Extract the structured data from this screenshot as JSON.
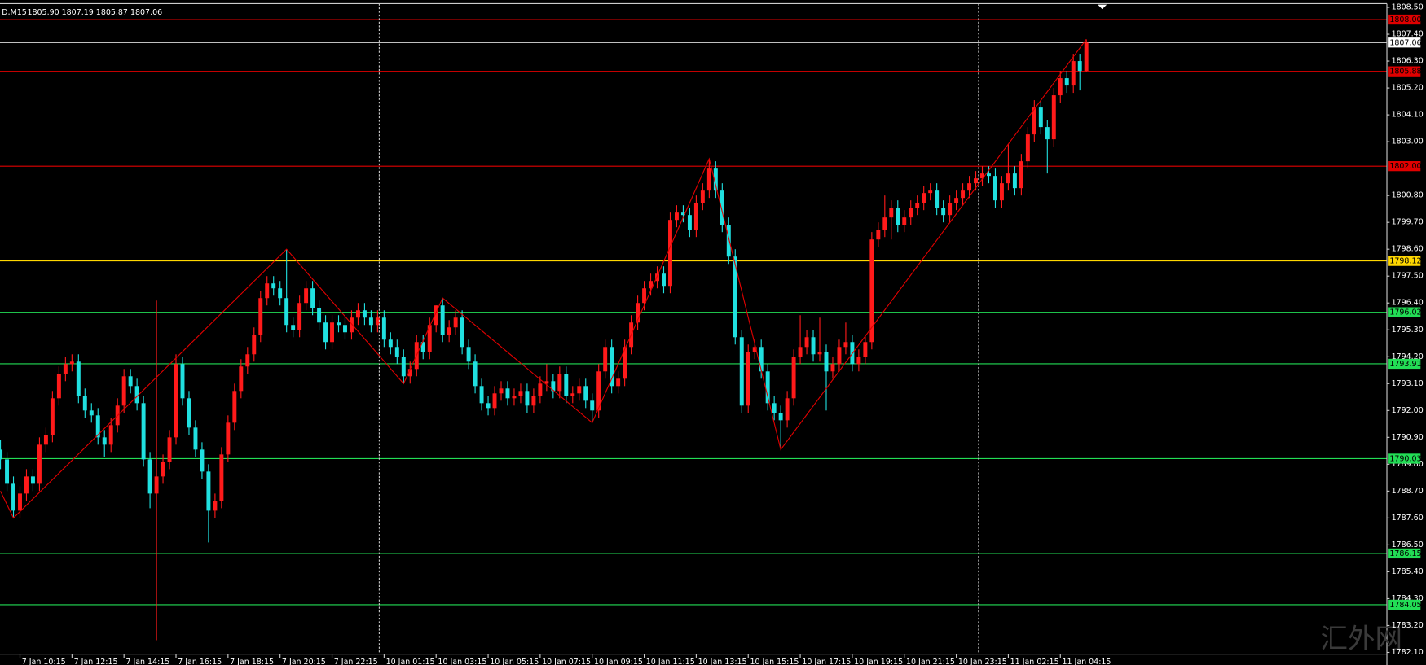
{
  "chart_data": {
    "type": "candlestick",
    "title": "D,M15",
    "subtitle": "1805.90 1807.19 1805.87 1807.06",
    "watermark": "汇外网",
    "up_color": "#ff1a1a",
    "down_color": "#20e0e0",
    "grid": false,
    "xlim": [
      -0.07,
      213.22
    ],
    "ylim": [
      1782.03,
      1808.8
    ],
    "yticks": [
      {
        "value": 1808.5,
        "label": "1808.50"
      },
      {
        "value": 1807.4,
        "label": "1807.40"
      },
      {
        "value": 1806.3,
        "label": "1806.30"
      },
      {
        "value": 1805.2,
        "label": "1805.20"
      },
      {
        "value": 1804.1,
        "label": "1804.10"
      },
      {
        "value": 1803.0,
        "label": "1803.00"
      },
      {
        "value": 1800.8,
        "label": "1800.80"
      },
      {
        "value": 1799.7,
        "label": "1799.70"
      },
      {
        "value": 1798.6,
        "label": "1798.60"
      },
      {
        "value": 1797.5,
        "label": "1797.50"
      },
      {
        "value": 1796.4,
        "label": "1796.40"
      },
      {
        "value": 1795.3,
        "label": "1795.30"
      },
      {
        "value": 1794.2,
        "label": "1794.20"
      },
      {
        "value": 1793.1,
        "label": "1793.10"
      },
      {
        "value": 1792.0,
        "label": "1792.00"
      },
      {
        "value": 1790.9,
        "label": "1790.90"
      },
      {
        "value": 1789.8,
        "label": "1789.80"
      },
      {
        "value": 1788.7,
        "label": "1788.70"
      },
      {
        "value": 1787.6,
        "label": "1787.60"
      },
      {
        "value": 1786.5,
        "label": "1786.50"
      },
      {
        "value": 1785.4,
        "label": "1785.40"
      },
      {
        "value": 1784.3,
        "label": "1784.30"
      },
      {
        "value": 1783.2,
        "label": "1783.20"
      },
      {
        "value": 1782.1,
        "label": "1782.10"
      }
    ],
    "xticks": [
      {
        "value": 3,
        "label": "7 Jan 10:15"
      },
      {
        "value": 11,
        "label": "7 Jan 12:15"
      },
      {
        "value": 19,
        "label": "7 Jan 14:15"
      },
      {
        "value": 27,
        "label": "7 Jan 16:15"
      },
      {
        "value": 35,
        "label": "7 Jan 18:15"
      },
      {
        "value": 43,
        "label": "7 Jan 20:15"
      },
      {
        "value": 51,
        "label": "7 Jan 22:15"
      },
      {
        "value": 59,
        "label": "10 Jan 01:15"
      },
      {
        "value": 67,
        "label": "10 Jan 03:15"
      },
      {
        "value": 75,
        "label": "10 Jan 05:15"
      },
      {
        "value": 83,
        "label": "10 Jan 07:15"
      },
      {
        "value": 91,
        "label": "10 Jan 09:15"
      },
      {
        "value": 99,
        "label": "10 Jan 11:15"
      },
      {
        "value": 107,
        "label": "10 Jan 13:15"
      },
      {
        "value": 115,
        "label": "10 Jan 15:15"
      },
      {
        "value": 123,
        "label": "10 Jan 17:15"
      },
      {
        "value": 131,
        "label": "10 Jan 19:15"
      },
      {
        "value": 139,
        "label": "10 Jan 21:15"
      },
      {
        "value": 147,
        "label": "10 Jan 23:15"
      },
      {
        "value": 155,
        "label": "11 Jan 02:15"
      },
      {
        "value": 163,
        "label": "11 Jan 04:15"
      }
    ],
    "levels": [
      {
        "value": 1808.0,
        "label": "1808.00",
        "color": "#e00000"
      },
      {
        "value": 1807.06,
        "label": "1807.06",
        "color": "#ffffff"
      },
      {
        "value": 1805.88,
        "label": "1805.88",
        "color": "#e00000"
      },
      {
        "value": 1802.0,
        "label": "1802.00",
        "color": "#e00000"
      },
      {
        "value": 1798.12,
        "label": "1798.12",
        "color": "#ffd700"
      },
      {
        "value": 1796.02,
        "label": "1796.02",
        "color": "#22dd55"
      },
      {
        "value": 1793.91,
        "label": "1793.91",
        "color": "#22dd55"
      },
      {
        "value": 1790.03,
        "label": "1790.03",
        "color": "#22dd55"
      },
      {
        "value": 1786.15,
        "label": "1786.15",
        "color": "#22dd55"
      },
      {
        "value": 1784.05,
        "label": "1784.05",
        "color": "#22dd55"
      }
    ],
    "zigzag": {
      "color": "#e00000",
      "x": [
        0,
        2,
        44,
        62,
        68,
        91,
        109,
        120,
        167
      ],
      "y": [
        1788.7,
        1787.6,
        1798.6,
        1793.1,
        1796.6,
        1791.5,
        1802.3,
        1790.4,
        1807.19
      ]
    },
    "ohlc": [
      [
        1790.4,
        1790.8,
        1789.6,
        1790.0
      ],
      [
        1790.0,
        1790.3,
        1788.7,
        1789.0
      ],
      [
        1789.0,
        1789.3,
        1787.6,
        1787.9
      ],
      [
        1787.9,
        1788.9,
        1787.6,
        1788.6
      ],
      [
        1788.6,
        1789.6,
        1788.3,
        1789.3
      ],
      [
        1789.3,
        1789.6,
        1788.7,
        1789.0
      ],
      [
        1789.0,
        1790.9,
        1788.7,
        1790.6
      ],
      [
        1790.6,
        1791.3,
        1790.3,
        1791.0
      ],
      [
        1791.0,
        1792.8,
        1790.7,
        1792.5
      ],
      [
        1792.5,
        1793.8,
        1792.2,
        1793.5
      ],
      [
        1793.5,
        1794.2,
        1793.2,
        1793.9
      ],
      [
        1793.9,
        1794.3,
        1793.6,
        1794.0
      ],
      [
        1794.0,
        1794.3,
        1792.3,
        1792.6
      ],
      [
        1792.6,
        1792.9,
        1791.7,
        1792.0
      ],
      [
        1792.0,
        1792.3,
        1791.5,
        1791.8
      ],
      [
        1791.8,
        1792.1,
        1790.6,
        1790.9
      ],
      [
        1790.9,
        1791.2,
        1790.1,
        1790.6
      ],
      [
        1790.6,
        1791.7,
        1790.3,
        1791.4
      ],
      [
        1791.4,
        1792.5,
        1791.1,
        1792.2
      ],
      [
        1792.2,
        1793.7,
        1791.9,
        1793.4
      ],
      [
        1793.4,
        1793.7,
        1792.7,
        1793.0
      ],
      [
        1793.0,
        1793.3,
        1792.0,
        1792.3
      ],
      [
        1792.3,
        1792.6,
        1789.7,
        1790.0
      ],
      [
        1790.0,
        1790.3,
        1788.0,
        1788.6
      ],
      [
        1788.6,
        1796.5,
        1782.6,
        1789.3
      ],
      [
        1789.3,
        1790.2,
        1789.0,
        1789.9
      ],
      [
        1789.9,
        1791.2,
        1789.6,
        1790.9
      ],
      [
        1790.9,
        1794.3,
        1790.6,
        1793.9
      ],
      [
        1793.9,
        1794.2,
        1792.2,
        1792.5
      ],
      [
        1792.5,
        1792.8,
        1791.0,
        1791.3
      ],
      [
        1791.3,
        1791.6,
        1790.1,
        1790.4
      ],
      [
        1790.4,
        1790.7,
        1789.2,
        1789.5
      ],
      [
        1789.5,
        1789.8,
        1786.6,
        1787.9
      ],
      [
        1787.9,
        1788.6,
        1787.6,
        1788.3
      ],
      [
        1788.3,
        1790.5,
        1788.0,
        1790.2
      ],
      [
        1790.2,
        1791.8,
        1789.9,
        1791.5
      ],
      [
        1791.5,
        1793.1,
        1791.2,
        1792.8
      ],
      [
        1792.8,
        1794.1,
        1792.5,
        1793.8
      ],
      [
        1793.8,
        1794.6,
        1793.5,
        1794.3
      ],
      [
        1794.3,
        1795.4,
        1794.0,
        1795.1
      ],
      [
        1795.1,
        1796.9,
        1794.8,
        1796.6
      ],
      [
        1796.6,
        1797.5,
        1796.3,
        1797.2
      ],
      [
        1797.2,
        1797.5,
        1796.7,
        1797.0
      ],
      [
        1797.0,
        1797.3,
        1796.3,
        1796.6
      ],
      [
        1796.6,
        1798.6,
        1795.2,
        1795.5
      ],
      [
        1795.5,
        1795.8,
        1795.0,
        1795.3
      ],
      [
        1795.3,
        1796.7,
        1795.0,
        1796.4
      ],
      [
        1796.4,
        1797.3,
        1796.1,
        1797.0
      ],
      [
        1797.0,
        1797.3,
        1795.9,
        1796.2
      ],
      [
        1796.2,
        1796.5,
        1795.3,
        1795.6
      ],
      [
        1795.6,
        1795.9,
        1794.5,
        1794.8
      ],
      [
        1794.8,
        1795.9,
        1794.5,
        1795.6
      ],
      [
        1795.6,
        1795.9,
        1795.2,
        1795.5
      ],
      [
        1795.5,
        1795.8,
        1794.9,
        1795.2
      ],
      [
        1795.2,
        1796.1,
        1794.9,
        1795.8
      ],
      [
        1795.8,
        1796.4,
        1795.5,
        1796.1
      ],
      [
        1796.1,
        1796.4,
        1795.5,
        1795.8
      ],
      [
        1795.8,
        1796.1,
        1795.2,
        1795.5
      ],
      [
        1795.5,
        1796.1,
        1795.2,
        1795.8
      ],
      [
        1795.8,
        1796.1,
        1794.6,
        1794.9
      ],
      [
        1794.9,
        1795.2,
        1794.3,
        1794.6
      ],
      [
        1794.6,
        1794.9,
        1793.9,
        1794.2
      ],
      [
        1794.2,
        1794.5,
        1793.1,
        1793.4
      ],
      [
        1793.4,
        1794.0,
        1793.1,
        1793.7
      ],
      [
        1793.7,
        1795.1,
        1793.4,
        1794.8
      ],
      [
        1794.8,
        1795.1,
        1794.1,
        1794.4
      ],
      [
        1794.4,
        1795.8,
        1794.1,
        1795.5
      ],
      [
        1795.5,
        1796.3,
        1795.2,
        1796.3
      ],
      [
        1796.3,
        1796.6,
        1794.8,
        1795.1
      ],
      [
        1795.1,
        1795.7,
        1794.8,
        1795.4
      ],
      [
        1795.4,
        1796.1,
        1795.1,
        1795.8
      ],
      [
        1795.8,
        1796.1,
        1794.3,
        1794.6
      ],
      [
        1794.6,
        1794.9,
        1793.7,
        1794.0
      ],
      [
        1794.0,
        1794.3,
        1792.7,
        1793.0
      ],
      [
        1793.0,
        1793.3,
        1792.0,
        1792.3
      ],
      [
        1792.3,
        1792.6,
        1791.8,
        1792.1
      ],
      [
        1792.1,
        1793.0,
        1791.8,
        1792.7
      ],
      [
        1792.7,
        1793.2,
        1792.4,
        1792.9
      ],
      [
        1792.9,
        1793.2,
        1792.2,
        1792.5
      ],
      [
        1792.5,
        1792.9,
        1792.2,
        1792.6
      ],
      [
        1792.6,
        1793.1,
        1792.3,
        1792.8
      ],
      [
        1792.8,
        1793.1,
        1791.9,
        1792.2
      ],
      [
        1792.2,
        1792.9,
        1791.9,
        1792.6
      ],
      [
        1792.6,
        1793.4,
        1792.3,
        1793.1
      ],
      [
        1793.1,
        1793.9,
        1792.8,
        1793.2
      ],
      [
        1793.2,
        1793.5,
        1792.5,
        1792.8
      ],
      [
        1792.8,
        1793.8,
        1792.5,
        1793.5
      ],
      [
        1793.5,
        1793.8,
        1792.3,
        1792.6
      ],
      [
        1792.6,
        1793.0,
        1792.3,
        1792.7
      ],
      [
        1792.7,
        1793.3,
        1792.4,
        1793.0
      ],
      [
        1793.0,
        1793.3,
        1792.1,
        1792.4
      ],
      [
        1792.4,
        1792.7,
        1791.5,
        1792.0
      ],
      [
        1792.0,
        1793.9,
        1791.7,
        1793.6
      ],
      [
        1793.6,
        1794.9,
        1793.3,
        1794.6
      ],
      [
        1794.6,
        1794.9,
        1792.7,
        1793.0
      ],
      [
        1793.0,
        1793.6,
        1792.7,
        1793.3
      ],
      [
        1793.3,
        1794.9,
        1793.0,
        1794.6
      ],
      [
        1794.6,
        1795.9,
        1794.3,
        1795.6
      ],
      [
        1795.6,
        1796.7,
        1795.3,
        1796.4
      ],
      [
        1796.4,
        1797.3,
        1796.1,
        1797.0
      ],
      [
        1797.0,
        1797.6,
        1796.7,
        1797.3
      ],
      [
        1797.3,
        1797.9,
        1797.0,
        1797.6
      ],
      [
        1797.6,
        1797.9,
        1796.8,
        1797.1
      ],
      [
        1797.1,
        1800.1,
        1796.8,
        1799.8
      ],
      [
        1799.8,
        1800.4,
        1799.5,
        1800.1
      ],
      [
        1800.1,
        1800.4,
        1799.7,
        1800.0
      ],
      [
        1800.0,
        1800.3,
        1799.1,
        1799.4
      ],
      [
        1799.4,
        1800.8,
        1799.1,
        1800.5
      ],
      [
        1800.5,
        1801.3,
        1800.2,
        1801.0
      ],
      [
        1801.0,
        1802.3,
        1800.7,
        1801.9
      ],
      [
        1801.9,
        1802.2,
        1800.7,
        1801.0
      ],
      [
        1801.0,
        1801.3,
        1799.3,
        1799.6
      ],
      [
        1799.6,
        1799.9,
        1798.0,
        1798.3
      ],
      [
        1798.3,
        1798.6,
        1794.7,
        1795.0
      ],
      [
        1795.0,
        1795.3,
        1791.9,
        1792.2
      ],
      [
        1792.2,
        1794.7,
        1791.9,
        1794.4
      ],
      [
        1794.4,
        1794.9,
        1794.1,
        1794.6
      ],
      [
        1794.6,
        1794.9,
        1793.3,
        1793.6
      ],
      [
        1793.6,
        1793.9,
        1792.0,
        1792.3
      ],
      [
        1792.3,
        1792.6,
        1791.6,
        1791.9
      ],
      [
        1791.9,
        1792.2,
        1790.4,
        1791.6
      ],
      [
        1791.6,
        1792.8,
        1791.3,
        1792.5
      ],
      [
        1792.5,
        1794.5,
        1792.2,
        1794.2
      ],
      [
        1794.2,
        1795.9,
        1793.9,
        1794.6
      ],
      [
        1794.6,
        1795.3,
        1794.3,
        1795.0
      ],
      [
        1795.0,
        1795.3,
        1794.0,
        1794.3
      ],
      [
        1794.3,
        1795.8,
        1794.0,
        1794.4
      ],
      [
        1794.4,
        1794.7,
        1792.0,
        1793.6
      ],
      [
        1793.6,
        1794.2,
        1793.3,
        1793.9
      ],
      [
        1793.9,
        1794.9,
        1793.6,
        1794.6
      ],
      [
        1794.6,
        1795.6,
        1794.3,
        1794.8
      ],
      [
        1794.8,
        1795.1,
        1793.6,
        1793.9
      ],
      [
        1793.9,
        1794.5,
        1793.6,
        1794.2
      ],
      [
        1794.2,
        1795.1,
        1793.9,
        1794.8
      ],
      [
        1794.8,
        1799.3,
        1794.5,
        1799.0
      ],
      [
        1799.0,
        1799.7,
        1798.7,
        1799.4
      ],
      [
        1799.4,
        1800.8,
        1799.1,
        1799.9
      ],
      [
        1799.9,
        1800.6,
        1799.0,
        1800.3
      ],
      [
        1800.3,
        1800.6,
        1799.3,
        1799.6
      ],
      [
        1799.6,
        1800.2,
        1799.3,
        1799.9
      ],
      [
        1799.9,
        1800.6,
        1799.6,
        1800.3
      ],
      [
        1800.3,
        1800.8,
        1800.0,
        1800.5
      ],
      [
        1800.5,
        1801.2,
        1800.2,
        1800.9
      ],
      [
        1800.9,
        1801.3,
        1800.6,
        1801.0
      ],
      [
        1801.0,
        1801.3,
        1800.0,
        1800.3
      ],
      [
        1800.3,
        1800.6,
        1799.7,
        1800.0
      ],
      [
        1800.0,
        1800.8,
        1799.7,
        1800.5
      ],
      [
        1800.5,
        1801.0,
        1800.2,
        1800.7
      ],
      [
        1800.7,
        1801.3,
        1800.4,
        1801.0
      ],
      [
        1801.0,
        1801.6,
        1800.7,
        1801.3
      ],
      [
        1801.3,
        1801.8,
        1801.0,
        1801.5
      ],
      [
        1801.5,
        1802.0,
        1801.2,
        1801.7
      ],
      [
        1801.7,
        1802.0,
        1801.3,
        1801.6
      ],
      [
        1801.6,
        1801.9,
        1800.3,
        1800.6
      ],
      [
        1800.6,
        1801.6,
        1800.3,
        1801.3
      ],
      [
        1801.3,
        1802.9,
        1801.0,
        1801.7
      ],
      [
        1801.7,
        1802.0,
        1800.8,
        1801.1
      ],
      [
        1801.1,
        1802.5,
        1800.8,
        1802.2
      ],
      [
        1802.2,
        1803.6,
        1801.9,
        1803.3
      ],
      [
        1803.3,
        1804.7,
        1803.0,
        1804.4
      ],
      [
        1804.4,
        1804.7,
        1803.3,
        1803.6
      ],
      [
        1803.6,
        1803.9,
        1801.7,
        1803.1
      ],
      [
        1803.1,
        1805.2,
        1802.8,
        1804.9
      ],
      [
        1804.9,
        1805.9,
        1804.6,
        1805.6
      ],
      [
        1805.6,
        1805.9,
        1805.0,
        1805.3
      ],
      [
        1805.3,
        1806.6,
        1805.0,
        1806.3
      ],
      [
        1806.3,
        1806.6,
        1805.1,
        1805.9
      ],
      [
        1805.9,
        1807.19,
        1805.87,
        1807.06
      ]
    ]
  }
}
